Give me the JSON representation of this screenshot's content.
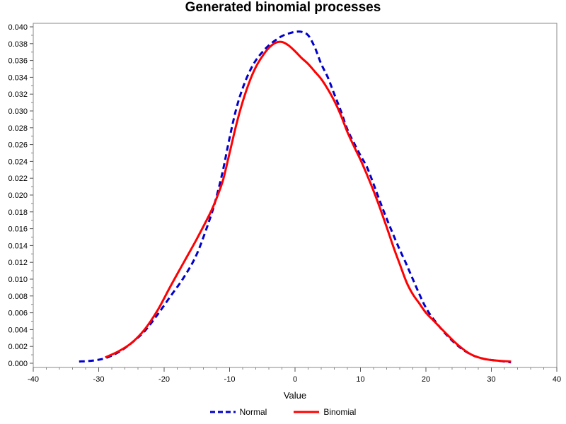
{
  "chart_data": {
    "type": "line",
    "title": "Generated binomial processes",
    "xlabel": "Value",
    "ylabel": "",
    "xlim": [
      -40,
      40
    ],
    "ylim": [
      0.0,
      0.04
    ],
    "x_ticks": [
      -40,
      -30,
      -20,
      -10,
      0,
      10,
      20,
      30,
      40
    ],
    "y_ticks": [
      0.0,
      0.002,
      0.004,
      0.006,
      0.008,
      0.01,
      0.012,
      0.014,
      0.016,
      0.018,
      0.02,
      0.022,
      0.024,
      0.026,
      0.028,
      0.03,
      0.032,
      0.034,
      0.036,
      0.038,
      0.04
    ],
    "x_tick_labels": [
      "-40",
      "-30",
      "-20",
      "-10",
      "0",
      "10",
      "20",
      "30",
      "40"
    ],
    "y_tick_labels": [
      "0.000",
      "0.002",
      "0.004",
      "0.006",
      "0.008",
      "0.010",
      "0.012",
      "0.014",
      "0.016",
      "0.018",
      "0.020",
      "0.022",
      "0.024",
      "0.026",
      "0.028",
      "0.030",
      "0.032",
      "0.034",
      "0.036",
      "0.038",
      "0.040"
    ],
    "grid": false,
    "legend_position": "bottom-center",
    "series": [
      {
        "name": "Normal",
        "color": "#0000cc",
        "style": "dashed",
        "x": [
          -33,
          -31,
          -29,
          -27,
          -25,
          -23,
          -21,
          -19,
          -17,
          -15,
          -13,
          -12,
          -11,
          -10,
          -9,
          -8,
          -7,
          -6,
          -5,
          -4,
          -3,
          -2,
          -1,
          0,
          1,
          2,
          3,
          4,
          5,
          6,
          7,
          8,
          9,
          10,
          11,
          12,
          13,
          14,
          15,
          16,
          17,
          18,
          19,
          20,
          21,
          23,
          25,
          27,
          29,
          31,
          33
        ],
        "y": [
          0.0002,
          0.0003,
          0.0006,
          0.0013,
          0.0024,
          0.0038,
          0.0058,
          0.008,
          0.0102,
          0.013,
          0.0172,
          0.0198,
          0.023,
          0.0268,
          0.0302,
          0.0327,
          0.0346,
          0.036,
          0.037,
          0.0378,
          0.0384,
          0.0389,
          0.0392,
          0.0394,
          0.0394,
          0.039,
          0.0376,
          0.0356,
          0.034,
          0.032,
          0.03,
          0.0278,
          0.0262,
          0.0247,
          0.0233,
          0.0213,
          0.0192,
          0.0172,
          0.0153,
          0.0135,
          0.0118,
          0.01,
          0.0082,
          0.0066,
          0.0054,
          0.0035,
          0.002,
          0.001,
          0.0005,
          0.0003,
          0.0001
        ]
      },
      {
        "name": "Binomial",
        "color": "#ff0000",
        "style": "solid",
        "x": [
          -29,
          -27,
          -25,
          -23,
          -21,
          -19,
          -17,
          -15,
          -13,
          -12,
          -11,
          -10,
          -9,
          -8,
          -7,
          -6,
          -5,
          -4,
          -3,
          -2,
          -1,
          0,
          1,
          2,
          3,
          4,
          5,
          6,
          7,
          8,
          9,
          10,
          11,
          12,
          13,
          14,
          15,
          16,
          17,
          18,
          19,
          20,
          21,
          23,
          25,
          27,
          29,
          31,
          33
        ],
        "y": [
          0.0007,
          0.0014,
          0.0024,
          0.004,
          0.0063,
          0.0092,
          0.012,
          0.0148,
          0.0178,
          0.0196,
          0.0218,
          0.025,
          0.0283,
          0.0311,
          0.0334,
          0.0352,
          0.0365,
          0.0375,
          0.0381,
          0.0382,
          0.0378,
          0.0371,
          0.0363,
          0.0356,
          0.0347,
          0.0338,
          0.0326,
          0.0312,
          0.0295,
          0.0275,
          0.0258,
          0.0242,
          0.0224,
          0.0205,
          0.0184,
          0.0162,
          0.0139,
          0.0118,
          0.0097,
          0.0082,
          0.0071,
          0.006,
          0.0052,
          0.0036,
          0.0021,
          0.001,
          0.0005,
          0.0003,
          0.0002
        ]
      }
    ]
  }
}
